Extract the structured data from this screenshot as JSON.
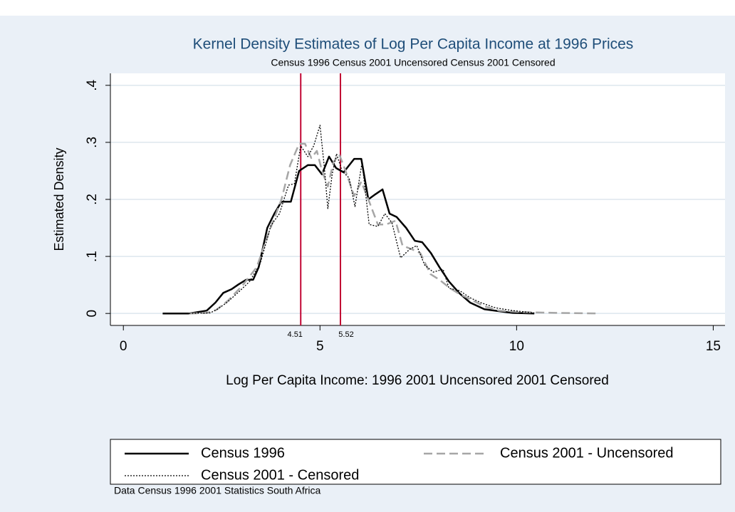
{
  "chart_data": {
    "type": "line",
    "title": "Kernel Density Estimates of Log Per Capita Income at 1996 Prices",
    "subtitle": "Census 1996 Census 2001 Uncensored Census 2001 Censored",
    "x_label": "Log Per Capita Income: 1996  2001 Uncensored 2001 Censored",
    "y_label": "Estimated Density",
    "note": "Data Census 1996 2001 Statistics South Africa",
    "xlim": [
      -0.33,
      15.3
    ],
    "ylim": [
      -0.021,
      0.421
    ],
    "xticks": [
      0,
      5,
      10,
      15
    ],
    "yticks": [
      0,
      {
        "value": 0.1,
        "label": ".1"
      },
      {
        "value": 0.2,
        "label": ".2"
      },
      {
        "value": 0.3,
        "label": ".3"
      },
      {
        "value": 0.4,
        "label": ".4"
      }
    ],
    "grid": true,
    "vlines": [
      {
        "value": 4.51,
        "color": "#c10534"
      },
      {
        "value": 5.52,
        "color": "#c10534"
      }
    ],
    "series": [
      {
        "name": "Census 1996",
        "color": "#000000",
        "style": "solid",
        "x": [
          1.0,
          1.67,
          2.12,
          2.34,
          2.54,
          2.75,
          2.93,
          3.12,
          3.3,
          3.44,
          3.66,
          3.84,
          4.02,
          4.26,
          4.47,
          4.69,
          4.87,
          5.05,
          5.23,
          5.41,
          5.6,
          5.87,
          6.05,
          6.23,
          6.41,
          6.59,
          6.77,
          6.95,
          7.19,
          7.41,
          7.6,
          7.82,
          8.04,
          8.28,
          8.55,
          8.82,
          9.18,
          9.55,
          9.9,
          10.45
        ],
        "values": [
          0,
          0,
          0.005,
          0.019,
          0.036,
          0.0425,
          0.051,
          0.059,
          0.059,
          0.081,
          0.15,
          0.175,
          0.196,
          0.196,
          0.25,
          0.26,
          0.26,
          0.244,
          0.275,
          0.255,
          0.2475,
          0.271,
          0.271,
          0.2,
          0.209,
          0.2175,
          0.175,
          0.169,
          0.15,
          0.1275,
          0.125,
          0.106,
          0.081,
          0.056,
          0.035,
          0.019,
          0.0075,
          0.004,
          0.001,
          0
        ]
      },
      {
        "name": "Census 2001 - Uncensored",
        "color": "#a6a6a6",
        "style": "dashed",
        "x": [
          1.67,
          2.12,
          2.36,
          2.66,
          3.03,
          3.39,
          3.71,
          4.02,
          4.24,
          4.47,
          4.62,
          4.78,
          4.92,
          5.05,
          5.2,
          5.34,
          5.49,
          5.65,
          5.87,
          6.05,
          6.23,
          6.47,
          6.68,
          6.92,
          7.1,
          7.34,
          7.55,
          7.81,
          8.04,
          8.31,
          8.55,
          8.82,
          9.18,
          9.55,
          10.09,
          11,
          12.08
        ],
        "values": [
          0,
          0.001,
          0.006,
          0.0225,
          0.049,
          0.081,
          0.144,
          0.2,
          0.26,
          0.2975,
          0.2975,
          0.2725,
          0.285,
          0.25,
          0.2225,
          0.265,
          0.279,
          0.25,
          0.206,
          0.231,
          0.2,
          0.156,
          0.156,
          0.1625,
          0.119,
          0.1125,
          0.106,
          0.069,
          0.059,
          0.044,
          0.034,
          0.025,
          0.0125,
          0.005,
          0.0025,
          0.001,
          0
        ]
      },
      {
        "name": "Census 2001 - Censored",
        "color": "#000000",
        "style": "dotted",
        "x": [
          1.67,
          2.21,
          2.39,
          2.63,
          2.93,
          3.21,
          3.48,
          3.75,
          3.97,
          4.2,
          4.35,
          4.51,
          4.69,
          4.84,
          5.0,
          5.11,
          5.2,
          5.31,
          5.42,
          5.56,
          5.74,
          5.89,
          6.07,
          6.25,
          6.47,
          6.65,
          6.83,
          7.05,
          7.28,
          7.46,
          7.66,
          7.88,
          8.13,
          8.28,
          8.55,
          8.82,
          9.09,
          9.46,
          9.9,
          10.45
        ],
        "values": [
          0,
          0.001,
          0.0075,
          0.019,
          0.0375,
          0.056,
          0.0875,
          0.154,
          0.175,
          0.225,
          0.2275,
          0.294,
          0.275,
          0.294,
          0.33,
          0.256,
          0.184,
          0.244,
          0.28,
          0.25,
          0.2375,
          0.1875,
          0.265,
          0.156,
          0.1525,
          0.175,
          0.159,
          0.0975,
          0.1125,
          0.119,
          0.085,
          0.0725,
          0.0775,
          0.044,
          0.04,
          0.0275,
          0.019,
          0.01,
          0.005,
          0.001
        ]
      }
    ]
  }
}
